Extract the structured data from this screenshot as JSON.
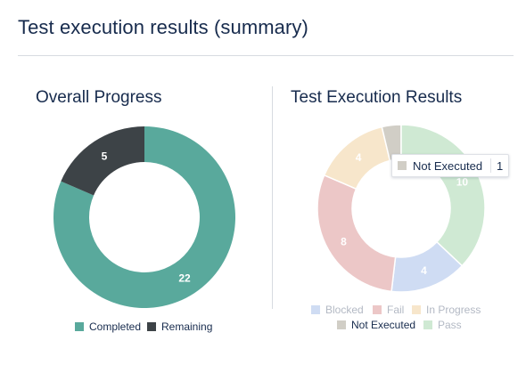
{
  "page": {
    "title": "Test execution results (summary)"
  },
  "overall_progress": {
    "title": "Overall Progress"
  },
  "test_execution_results": {
    "title": "Test Execution Results",
    "tooltip": {
      "label": "Not Executed",
      "value": "1",
      "color": "#d1cec6"
    }
  },
  "chart_data": [
    {
      "type": "pie",
      "title": "Overall Progress",
      "donut": true,
      "categories": [
        "Completed",
        "Remaining"
      ],
      "values": [
        22,
        5
      ],
      "colors": [
        "#59a99c",
        "#3d4347"
      ],
      "legend": "bottom"
    },
    {
      "type": "pie",
      "title": "Test Execution Results",
      "donut": true,
      "categories": [
        "Blocked",
        "Fail",
        "In Progress",
        "Not Executed",
        "Pass"
      ],
      "values": [
        4,
        8,
        4,
        1,
        10
      ],
      "colors": [
        "#cfdcf3",
        "#ecc7c7",
        "#f7e6cb",
        "#d1cec6",
        "#cfe9d3"
      ],
      "highlighted": "Not Executed",
      "legend": "bottom"
    }
  ]
}
